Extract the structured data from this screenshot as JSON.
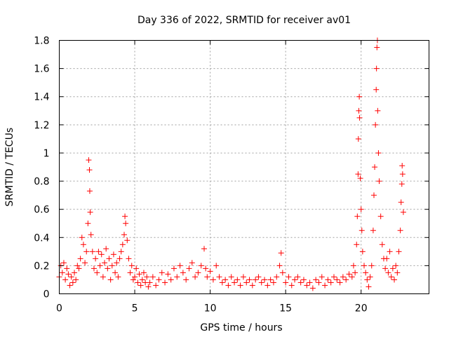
{
  "chart_data": {
    "type": "scatter",
    "title": "Day 336 of 2022, SRMTID for receiver av01",
    "xlabel": "GPS time / hours",
    "ylabel": "SRMTID / TECUs",
    "xlim": [
      0,
      24.5
    ],
    "ylim": [
      0,
      1.8
    ],
    "xticks": [
      0,
      5,
      10,
      15,
      20
    ],
    "xtick_labels": [
      "0",
      "5",
      "10",
      "15",
      "20"
    ],
    "yticks": [
      0,
      0.2,
      0.4,
      0.6,
      0.8,
      1.0,
      1.2,
      1.4,
      1.6,
      1.8
    ],
    "ytick_labels": [
      "0",
      "0.2",
      "0.4",
      "0.6",
      "0.8",
      "1",
      "1.2",
      "1.4",
      "1.6",
      "1.8"
    ],
    "grid": true,
    "marker": "+",
    "series": [
      {
        "name": "SRMTID",
        "color": "#ff0000",
        "points": [
          [
            0.0,
            0.12
          ],
          [
            0.1,
            0.2
          ],
          [
            0.2,
            0.15
          ],
          [
            0.3,
            0.22
          ],
          [
            0.4,
            0.1
          ],
          [
            0.5,
            0.18
          ],
          [
            0.6,
            0.14
          ],
          [
            0.7,
            0.06
          ],
          [
            0.8,
            0.12
          ],
          [
            0.9,
            0.08
          ],
          [
            1.0,
            0.15
          ],
          [
            1.1,
            0.1
          ],
          [
            1.2,
            0.2
          ],
          [
            1.3,
            0.18
          ],
          [
            1.4,
            0.25
          ],
          [
            1.5,
            0.4
          ],
          [
            1.6,
            0.35
          ],
          [
            1.7,
            0.22
          ],
          [
            1.8,
            0.3
          ],
          [
            1.9,
            0.5
          ],
          [
            1.95,
            0.95
          ],
          [
            2.0,
            0.88
          ],
          [
            2.02,
            0.73
          ],
          [
            2.05,
            0.58
          ],
          [
            2.1,
            0.42
          ],
          [
            2.2,
            0.3
          ],
          [
            2.3,
            0.18
          ],
          [
            2.4,
            0.25
          ],
          [
            2.5,
            0.15
          ],
          [
            2.6,
            0.3
          ],
          [
            2.7,
            0.2
          ],
          [
            2.8,
            0.28
          ],
          [
            2.9,
            0.12
          ],
          [
            3.0,
            0.22
          ],
          [
            3.1,
            0.32
          ],
          [
            3.2,
            0.18
          ],
          [
            3.3,
            0.25
          ],
          [
            3.4,
            0.1
          ],
          [
            3.5,
            0.2
          ],
          [
            3.6,
            0.28
          ],
          [
            3.7,
            0.15
          ],
          [
            3.8,
            0.22
          ],
          [
            3.9,
            0.12
          ],
          [
            4.0,
            0.25
          ],
          [
            4.1,
            0.3
          ],
          [
            4.2,
            0.35
          ],
          [
            4.3,
            0.42
          ],
          [
            4.35,
            0.55
          ],
          [
            4.4,
            0.5
          ],
          [
            4.5,
            0.38
          ],
          [
            4.6,
            0.25
          ],
          [
            4.7,
            0.15
          ],
          [
            4.8,
            0.2
          ],
          [
            4.9,
            0.1
          ],
          [
            5.0,
            0.12
          ],
          [
            5.1,
            0.18
          ],
          [
            5.2,
            0.08
          ],
          [
            5.3,
            0.14
          ],
          [
            5.4,
            0.06
          ],
          [
            5.5,
            0.1
          ],
          [
            5.6,
            0.15
          ],
          [
            5.7,
            0.08
          ],
          [
            5.8,
            0.12
          ],
          [
            5.9,
            0.05
          ],
          [
            6.0,
            0.08
          ],
          [
            6.2,
            0.12
          ],
          [
            6.4,
            0.06
          ],
          [
            6.6,
            0.1
          ],
          [
            6.8,
            0.15
          ],
          [
            7.0,
            0.08
          ],
          [
            7.2,
            0.14
          ],
          [
            7.4,
            0.1
          ],
          [
            7.6,
            0.18
          ],
          [
            7.8,
            0.12
          ],
          [
            8.0,
            0.2
          ],
          [
            8.2,
            0.15
          ],
          [
            8.4,
            0.1
          ],
          [
            8.6,
            0.18
          ],
          [
            8.8,
            0.22
          ],
          [
            9.0,
            0.12
          ],
          [
            9.2,
            0.15
          ],
          [
            9.4,
            0.2
          ],
          [
            9.6,
            0.32
          ],
          [
            9.7,
            0.18
          ],
          [
            9.8,
            0.12
          ],
          [
            10.0,
            0.16
          ],
          [
            10.2,
            0.1
          ],
          [
            10.4,
            0.2
          ],
          [
            10.6,
            0.12
          ],
          [
            10.8,
            0.08
          ],
          [
            11.0,
            0.1
          ],
          [
            11.2,
            0.06
          ],
          [
            11.4,
            0.12
          ],
          [
            11.6,
            0.08
          ],
          [
            11.8,
            0.1
          ],
          [
            12.0,
            0.06
          ],
          [
            12.2,
            0.12
          ],
          [
            12.4,
            0.08
          ],
          [
            12.6,
            0.1
          ],
          [
            12.8,
            0.06
          ],
          [
            13.0,
            0.1
          ],
          [
            13.2,
            0.12
          ],
          [
            13.4,
            0.08
          ],
          [
            13.6,
            0.1
          ],
          [
            13.8,
            0.06
          ],
          [
            14.0,
            0.1
          ],
          [
            14.2,
            0.08
          ],
          [
            14.4,
            0.12
          ],
          [
            14.6,
            0.2
          ],
          [
            14.7,
            0.29
          ],
          [
            14.8,
            0.15
          ],
          [
            15.0,
            0.08
          ],
          [
            15.2,
            0.12
          ],
          [
            15.4,
            0.06
          ],
          [
            15.6,
            0.1
          ],
          [
            15.8,
            0.12
          ],
          [
            16.0,
            0.08
          ],
          [
            16.2,
            0.1
          ],
          [
            16.4,
            0.06
          ],
          [
            16.6,
            0.08
          ],
          [
            16.8,
            0.04
          ],
          [
            17.0,
            0.1
          ],
          [
            17.2,
            0.08
          ],
          [
            17.4,
            0.12
          ],
          [
            17.6,
            0.06
          ],
          [
            17.8,
            0.1
          ],
          [
            18.0,
            0.08
          ],
          [
            18.2,
            0.12
          ],
          [
            18.4,
            0.1
          ],
          [
            18.6,
            0.08
          ],
          [
            18.8,
            0.12
          ],
          [
            19.0,
            0.1
          ],
          [
            19.2,
            0.14
          ],
          [
            19.4,
            0.12
          ],
          [
            19.5,
            0.2
          ],
          [
            19.6,
            0.15
          ],
          [
            19.7,
            0.35
          ],
          [
            19.75,
            0.55
          ],
          [
            19.8,
            0.85
          ],
          [
            19.82,
            1.1
          ],
          [
            19.85,
            1.3
          ],
          [
            19.88,
            1.4
          ],
          [
            19.9,
            1.25
          ],
          [
            19.95,
            0.82
          ],
          [
            20.0,
            0.6
          ],
          [
            20.05,
            0.45
          ],
          [
            20.1,
            0.3
          ],
          [
            20.2,
            0.2
          ],
          [
            20.3,
            0.15
          ],
          [
            20.4,
            0.1
          ],
          [
            20.5,
            0.05
          ],
          [
            20.6,
            0.12
          ],
          [
            20.7,
            0.2
          ],
          [
            20.8,
            0.45
          ],
          [
            20.85,
            0.7
          ],
          [
            20.9,
            0.9
          ],
          [
            20.95,
            1.2
          ],
          [
            21.0,
            1.45
          ],
          [
            21.02,
            1.6
          ],
          [
            21.05,
            1.75
          ],
          [
            21.08,
            1.8
          ],
          [
            21.1,
            1.3
          ],
          [
            21.15,
            1.0
          ],
          [
            21.2,
            0.8
          ],
          [
            21.3,
            0.55
          ],
          [
            21.4,
            0.35
          ],
          [
            21.5,
            0.25
          ],
          [
            21.6,
            0.18
          ],
          [
            21.7,
            0.25
          ],
          [
            21.8,
            0.15
          ],
          [
            21.9,
            0.3
          ],
          [
            22.0,
            0.12
          ],
          [
            22.1,
            0.18
          ],
          [
            22.2,
            0.1
          ],
          [
            22.3,
            0.2
          ],
          [
            22.4,
            0.15
          ],
          [
            22.5,
            0.3
          ],
          [
            22.6,
            0.45
          ],
          [
            22.65,
            0.65
          ],
          [
            22.7,
            0.78
          ],
          [
            22.72,
            0.91
          ],
          [
            22.75,
            0.85
          ],
          [
            22.8,
            0.58
          ]
        ]
      }
    ]
  }
}
